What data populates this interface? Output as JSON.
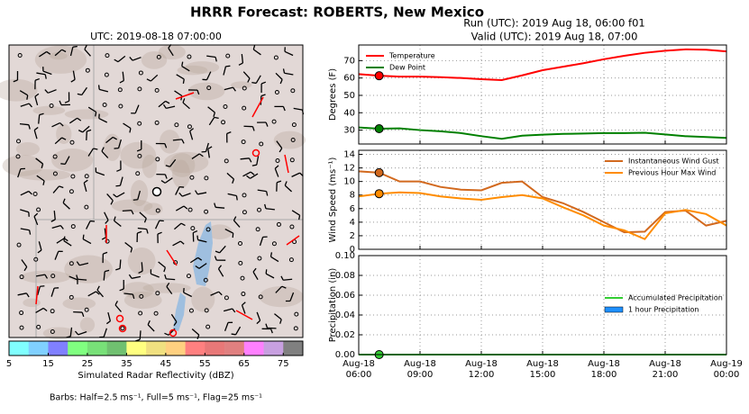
{
  "title": "HRRR Forecast: ROBERTS, New Mexico",
  "chart_data": [
    {
      "type": "map",
      "title": "UTC: 2019-08-18 07:00:00",
      "colorbar": {
        "label": "Simulated Radar Reflectivity (dBZ)",
        "lim": [
          5,
          80
        ],
        "ticks": [
          5,
          15,
          25,
          35,
          45,
          55,
          65,
          75
        ],
        "colors": [
          "#80ffff",
          "#80d0ff",
          "#8080ff",
          "#80ff80",
          "#78e078",
          "#70c070",
          "#ffff80",
          "#f0e080",
          "#ffd080",
          "#ff8080",
          "#e87878",
          "#e08080",
          "#ff80ff",
          "#c8a0e0",
          "#808080"
        ]
      },
      "note": "Barbs: Half=2.5 ms⁻¹, Full=5 ms⁻¹, Flag=25 ms⁻¹"
    },
    {
      "type": "line",
      "title": "Run (UTC): 2019 Aug 18, 06:00 f01",
      "subtitle": "Valid (UTC): 2019 Aug 18, 07:00",
      "ylabel": "Degrees (F)",
      "legend": "upper left",
      "grid": true,
      "highlight_x": "Aug-18 07:00",
      "x": [
        "Aug-18 06:00",
        "Aug-18 07:00",
        "Aug-18 08:00",
        "Aug-18 09:00",
        "Aug-18 10:00",
        "Aug-18 11:00",
        "Aug-18 12:00",
        "Aug-18 13:00",
        "Aug-18 14:00",
        "Aug-18 15:00",
        "Aug-18 16:00",
        "Aug-18 17:00",
        "Aug-18 18:00",
        "Aug-18 19:00",
        "Aug-18 20:00",
        "Aug-18 21:00",
        "Aug-18 22:00",
        "Aug-18 23:00",
        "Aug-19 00:00"
      ],
      "ylim": [
        22,
        79
      ],
      "yticks": [
        30,
        40,
        50,
        60,
        70
      ],
      "series": [
        {
          "name": "Temperature",
          "color": "#ff0000",
          "values": [
            62.2,
            61.3,
            60.8,
            60.8,
            60.5,
            60.0,
            59.3,
            58.8,
            61.5,
            64.5,
            66.5,
            68.5,
            70.8,
            72.8,
            74.5,
            75.7,
            76.5,
            76.3,
            75.3
          ]
        },
        {
          "name": "Dew Point",
          "color": "#008000",
          "values": [
            31.5,
            30.8,
            31.0,
            30.0,
            29.3,
            28.3,
            26.5,
            25.0,
            26.8,
            27.4,
            27.8,
            28.0,
            28.3,
            28.3,
            28.5,
            27.5,
            26.5,
            26.0,
            25.5
          ]
        }
      ]
    },
    {
      "type": "line",
      "ylabel": "Wind Speed (ms⁻¹)",
      "legend": "upper right",
      "grid": true,
      "highlight_x": "Aug-18 07:00",
      "x": [
        "Aug-18 06:00",
        "Aug-18 07:00",
        "Aug-18 08:00",
        "Aug-18 09:00",
        "Aug-18 10:00",
        "Aug-18 11:00",
        "Aug-18 12:00",
        "Aug-18 13:00",
        "Aug-18 14:00",
        "Aug-18 15:00",
        "Aug-18 16:00",
        "Aug-18 17:00",
        "Aug-18 18:00",
        "Aug-18 19:00",
        "Aug-18 20:00",
        "Aug-18 21:00",
        "Aug-18 22:00",
        "Aug-18 23:00",
        "Aug-19 00:00"
      ],
      "ylim": [
        0,
        14.6
      ],
      "yticks": [
        0,
        2,
        4,
        6,
        8,
        10,
        12,
        14
      ],
      "series": [
        {
          "name": "Instantaneous Wind Gust",
          "color": "#d2691e",
          "values": [
            11.5,
            11.3,
            10.0,
            10.0,
            9.2,
            8.8,
            8.7,
            9.8,
            10.0,
            7.7,
            6.8,
            5.5,
            4.0,
            2.5,
            2.6,
            5.5,
            5.7,
            3.5,
            4.2
          ]
        },
        {
          "name": "Previous Hour Max Wind",
          "color": "#ff8c00",
          "values": [
            7.8,
            8.2,
            8.4,
            8.3,
            7.8,
            7.5,
            7.3,
            7.7,
            8.0,
            7.5,
            6.2,
            5.0,
            3.5,
            2.8,
            1.5,
            5.3,
            5.8,
            5.2,
            3.5
          ]
        }
      ]
    },
    {
      "type": "line",
      "ylabel": "Precipitation (in)",
      "legend": "center right",
      "grid": true,
      "highlight_x": "Aug-18 07:00",
      "x": [
        "Aug-18 06:00",
        "Aug-18 07:00",
        "Aug-18 08:00",
        "Aug-18 09:00",
        "Aug-18 10:00",
        "Aug-18 11:00",
        "Aug-18 12:00",
        "Aug-18 13:00",
        "Aug-18 14:00",
        "Aug-18 15:00",
        "Aug-18 16:00",
        "Aug-18 17:00",
        "Aug-18 18:00",
        "Aug-18 19:00",
        "Aug-18 20:00",
        "Aug-18 21:00",
        "Aug-18 22:00",
        "Aug-18 23:00",
        "Aug-19 00:00"
      ],
      "ylim": [
        0,
        0.1
      ],
      "yticks": [
        {
          "value": 0,
          "label": "0.00"
        },
        {
          "value": 0.02,
          "label": "0.02"
        },
        {
          "value": 0.04,
          "label": "0.04"
        },
        {
          "value": 0.06,
          "label": "0.06"
        },
        {
          "value": 0.08,
          "label": "0.08"
        },
        {
          "value": 0.1,
          "label": "0.10"
        }
      ],
      "xticks": [
        {
          "value": "Aug-18 06:00",
          "label": [
            "Aug-18",
            "06:00"
          ]
        },
        {
          "value": "Aug-18 09:00",
          "label": [
            "Aug-18",
            "09:00"
          ]
        },
        {
          "value": "Aug-18 12:00",
          "label": [
            "Aug-18",
            "12:00"
          ]
        },
        {
          "value": "Aug-18 15:00",
          "label": [
            "Aug-18",
            "15:00"
          ]
        },
        {
          "value": "Aug-18 18:00",
          "label": [
            "Aug-18",
            "18:00"
          ]
        },
        {
          "value": "Aug-18 21:00",
          "label": [
            "Aug-18",
            "21:00"
          ]
        },
        {
          "value": "Aug-19 00:00",
          "label": [
            "Aug-19",
            "00:00"
          ]
        }
      ],
      "series": [
        {
          "name": "Accumulated Precipitation",
          "color": "#32cd32",
          "values": [
            0,
            0,
            0,
            0,
            0,
            0,
            0,
            0,
            0,
            0,
            0,
            0,
            0,
            0,
            0,
            0,
            0,
            0,
            0
          ]
        },
        {
          "name": "1 hour Precipitation",
          "type": "bar",
          "color": "#1e90ff",
          "values": [
            0,
            0,
            0,
            0,
            0,
            0,
            0,
            0,
            0,
            0,
            0,
            0,
            0,
            0,
            0,
            0,
            0,
            0,
            0
          ]
        }
      ]
    }
  ]
}
